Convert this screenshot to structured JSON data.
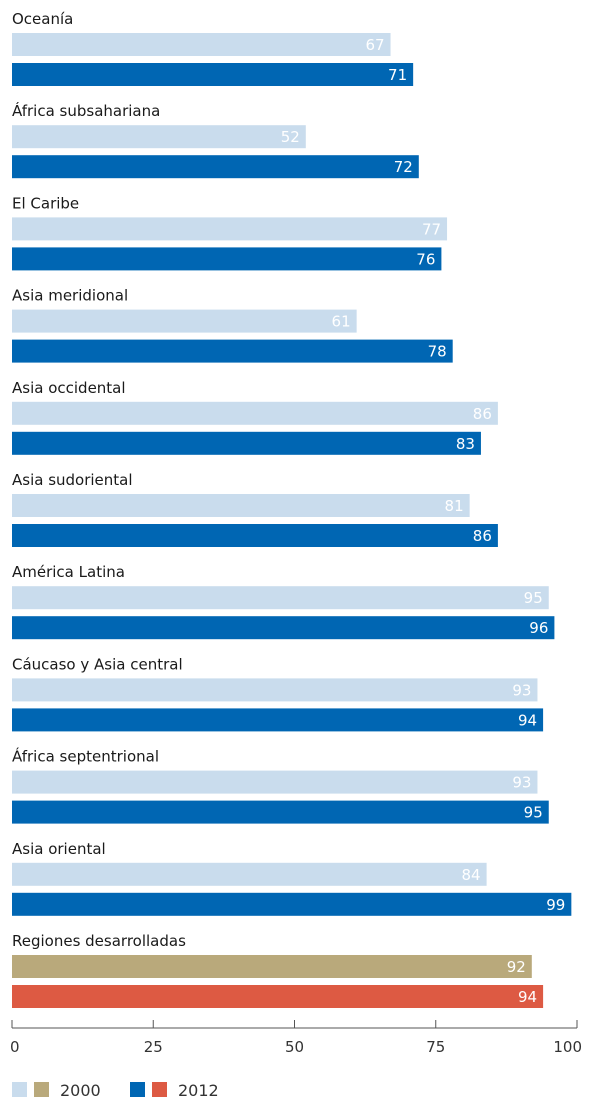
{
  "chart_data": {
    "type": "bar",
    "orientation": "horizontal",
    "categories": [
      "Oceanía",
      "África subsahariana",
      "El Caribe",
      "Asia meridional",
      "Asia occidental",
      "Asia sudoriental",
      "América Latina",
      "Cáucaso y Asia central",
      "África septentrional",
      "Asia oriental",
      "Regiones desarrolladas"
    ],
    "series": [
      {
        "name": "2000",
        "values": [
          67,
          52,
          77,
          61,
          86,
          81,
          95,
          93,
          93,
          84,
          92
        ],
        "color": "#c9dced",
        "developed_color": "#b9a97b"
      },
      {
        "name": "2012",
        "values": [
          71,
          72,
          76,
          78,
          83,
          86,
          96,
          94,
          95,
          99,
          94
        ],
        "color": "#0066b3",
        "developed_color": "#dd5a43"
      }
    ],
    "xlim": [
      0,
      100
    ],
    "xticks": [
      0,
      25,
      50,
      75,
      100
    ],
    "grid": false,
    "legend": {
      "placement": "bottom-left",
      "entries": [
        {
          "label": "2000",
          "colors": [
            "#c9dced",
            "#b9a97b"
          ]
        },
        {
          "label": "2012",
          "colors": [
            "#0066b3",
            "#dd5a43"
          ]
        }
      ]
    }
  }
}
